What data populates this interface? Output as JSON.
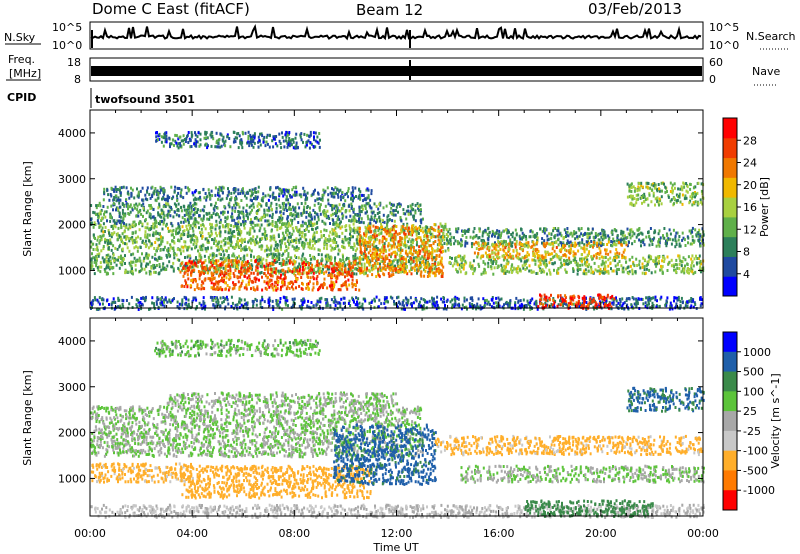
{
  "header": {
    "station": "Dome C East (fitACF)",
    "beam": "Beam 12",
    "date": "03/Feb/2013"
  },
  "top_panels": {
    "nsky_label": "N.Sky",
    "nsky_ticks": [
      "10^5",
      "10^0"
    ],
    "nsearch_label": "N.Search",
    "nsearch_ticks": [
      "10^5",
      "10^0"
    ],
    "freq_label_line1": "Freq.",
    "freq_label_line2": "[MHz]",
    "freq_ticks": [
      "18",
      "8"
    ],
    "nave_label": "Nave",
    "nave_ticks": [
      "60",
      "0"
    ],
    "cpid_label": "CPID",
    "cpid_value": "twofsound 3501"
  },
  "colors": {
    "power": [
      "#0000ff",
      "#1f4aa0",
      "#2c7f5a",
      "#5fb04a",
      "#a8d040",
      "#f0b800",
      "#f07800",
      "#f03c00",
      "#ff0000"
    ],
    "velocity": [
      "#ff0000",
      "#ff7a00",
      "#ffae2a",
      "#c8c8c8",
      "#a8a8a8",
      "#5cc43a",
      "#3a8a4a",
      "#1f5faa",
      "#0000ff"
    ],
    "line": "#000000",
    "background": "#ffffff"
  },
  "chart_data": [
    {
      "type": "heatmap",
      "name": "power-panel",
      "quantity": "Power",
      "unit": "dB",
      "x_label": "Time UT",
      "y_label": "Slant Range [km]",
      "x_ticks": [
        "00:00",
        "04:00",
        "08:00",
        "12:00",
        "16:00",
        "20:00",
        "00:00"
      ],
      "x_range_hours": [
        0,
        24
      ],
      "y_ticks": [
        1000,
        2000,
        3000,
        4000
      ],
      "y_range_km": [
        180,
        4500
      ],
      "colorbar_label": "Power [dB]",
      "colorbar_ticks": [
        4,
        8,
        12,
        16,
        20,
        24,
        28
      ],
      "colorbar_range": [
        0,
        32
      ],
      "regions": [
        {
          "t0": 0.0,
          "t1": 24.0,
          "r0": 180,
          "r1": 450,
          "value": 6
        },
        {
          "t0": 0.0,
          "t1": 14.0,
          "r0": 1450,
          "r1": 2050,
          "value": 13
        },
        {
          "t0": 0.0,
          "t1": 13.0,
          "r0": 2050,
          "r1": 2500,
          "value": 10
        },
        {
          "t0": 0.5,
          "t1": 11.0,
          "r0": 2550,
          "r1": 2850,
          "value": 8
        },
        {
          "t0": 2.5,
          "t1": 9.0,
          "r0": 3700,
          "r1": 4050,
          "value": 7
        },
        {
          "t0": 0.0,
          "t1": 13.5,
          "r0": 950,
          "r1": 1400,
          "value": 12
        },
        {
          "t0": 3.5,
          "t1": 10.5,
          "r0": 600,
          "r1": 1250,
          "value": 25
        },
        {
          "t0": 10.5,
          "t1": 13.8,
          "r0": 900,
          "r1": 2000,
          "value": 22
        },
        {
          "t0": 14.0,
          "t1": 24.0,
          "r0": 1550,
          "r1": 1950,
          "value": 10
        },
        {
          "t0": 14.0,
          "t1": 24.0,
          "r0": 950,
          "r1": 1350,
          "value": 14
        },
        {
          "t0": 15.0,
          "t1": 21.0,
          "r0": 1300,
          "r1": 1650,
          "value": 20
        },
        {
          "t0": 17.5,
          "t1": 20.5,
          "r0": 200,
          "r1": 500,
          "value": 28
        },
        {
          "t0": 21.0,
          "t1": 24.0,
          "r0": 2450,
          "r1": 2950,
          "value": 14
        }
      ]
    },
    {
      "type": "heatmap",
      "name": "velocity-panel",
      "quantity": "Velocity",
      "unit": "m s^-1",
      "x_label": "Time UT",
      "y_label": "Slant Range [km]",
      "x_ticks": [
        "00:00",
        "04:00",
        "08:00",
        "12:00",
        "16:00",
        "20:00",
        "00:00"
      ],
      "x_range_hours": [
        0,
        24
      ],
      "y_ticks": [
        1000,
        2000,
        3000,
        4000
      ],
      "y_range_km": [
        180,
        4500
      ],
      "colorbar_label": "Velocity [m s^-1]",
      "colorbar_ticks": [
        "1000",
        "500",
        "100",
        "25",
        "-25",
        "-100",
        "-500",
        "-1000"
      ],
      "regions": [
        {
          "t0": 0.0,
          "t1": 24.0,
          "r0": 180,
          "r1": 450,
          "value": -25
        },
        {
          "t0": 0.0,
          "t1": 13.0,
          "r0": 1500,
          "r1": 2600,
          "value": 0
        },
        {
          "t0": 3.0,
          "t1": 12.0,
          "r0": 2600,
          "r1": 2900,
          "value": 0
        },
        {
          "t0": 2.5,
          "t1": 9.0,
          "r0": 3700,
          "r1": 4050,
          "value": 10
        },
        {
          "t0": 0.0,
          "t1": 4.0,
          "r0": 950,
          "r1": 1350,
          "value": -150
        },
        {
          "t0": 3.5,
          "t1": 11.0,
          "r0": 600,
          "r1": 1300,
          "value": -200
        },
        {
          "t0": 9.5,
          "t1": 13.5,
          "r0": 900,
          "r1": 2200,
          "value": 150
        },
        {
          "t0": 13.5,
          "t1": 24.0,
          "r0": 1550,
          "r1": 1950,
          "value": -150
        },
        {
          "t0": 14.5,
          "t1": 24.0,
          "r0": 950,
          "r1": 1300,
          "value": 0
        },
        {
          "t0": 17.0,
          "t1": 22.0,
          "r0": 200,
          "r1": 550,
          "value": 60
        },
        {
          "t0": 21.0,
          "t1": 24.0,
          "r0": 2500,
          "r1": 3000,
          "value": 120
        }
      ]
    }
  ]
}
